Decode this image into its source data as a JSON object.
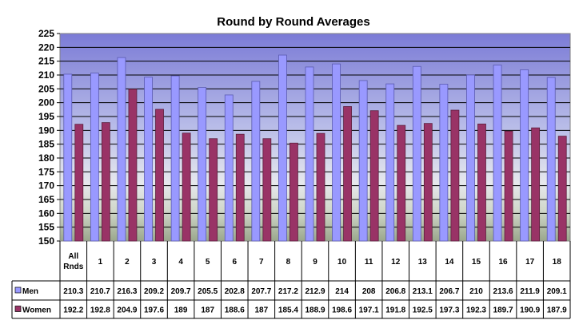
{
  "chart_data": {
    "type": "bar",
    "title": "Round by Round  Averages",
    "categories": [
      "All Rnds",
      "1",
      "2",
      "3",
      "4",
      "5",
      "6",
      "7",
      "8",
      "9",
      "10",
      "11",
      "12",
      "13",
      "14",
      "15",
      "16",
      "17",
      "18"
    ],
    "series": [
      {
        "name": "Men",
        "color": "#9999ff",
        "values": [
          210.3,
          210.7,
          216.3,
          209.2,
          209.7,
          205.5,
          202.8,
          207.7,
          217.2,
          212.9,
          214,
          208,
          206.8,
          213.1,
          206.7,
          210,
          213.6,
          211.9,
          209.1
        ],
        "labels": [
          "210.3",
          "210.7",
          "216.3",
          "209.2",
          "209.7",
          "205.5",
          "202.8",
          "207.7",
          "217.2",
          "212.9",
          "214",
          "208",
          "206.8",
          "213.1",
          "206.7",
          "210",
          "213.6",
          "211.9",
          "209.1"
        ]
      },
      {
        "name": "Women",
        "color": "#993366",
        "values": [
          192.2,
          192.8,
          204.9,
          197.6,
          189,
          187,
          188.6,
          187,
          185.4,
          188.9,
          198.6,
          197.1,
          191.8,
          192.5,
          197.3,
          192.3,
          189.7,
          190.9,
          187.9
        ],
        "labels": [
          "192.2",
          "192.8",
          "204.9",
          "197.6",
          "189",
          "187",
          "188.6",
          "187",
          "185.4",
          "188.9",
          "198.6",
          "197.1",
          "191.8",
          "192.5",
          "197.3",
          "192.3",
          "189.7",
          "190.9",
          "187.9"
        ]
      }
    ],
    "ylim": [
      150,
      225
    ],
    "yticks": [
      150,
      155,
      160,
      165,
      170,
      175,
      180,
      185,
      190,
      195,
      200,
      205,
      210,
      215,
      220,
      225
    ],
    "grid": true,
    "legend": "data-table",
    "xlabel": "",
    "ylabel": ""
  }
}
